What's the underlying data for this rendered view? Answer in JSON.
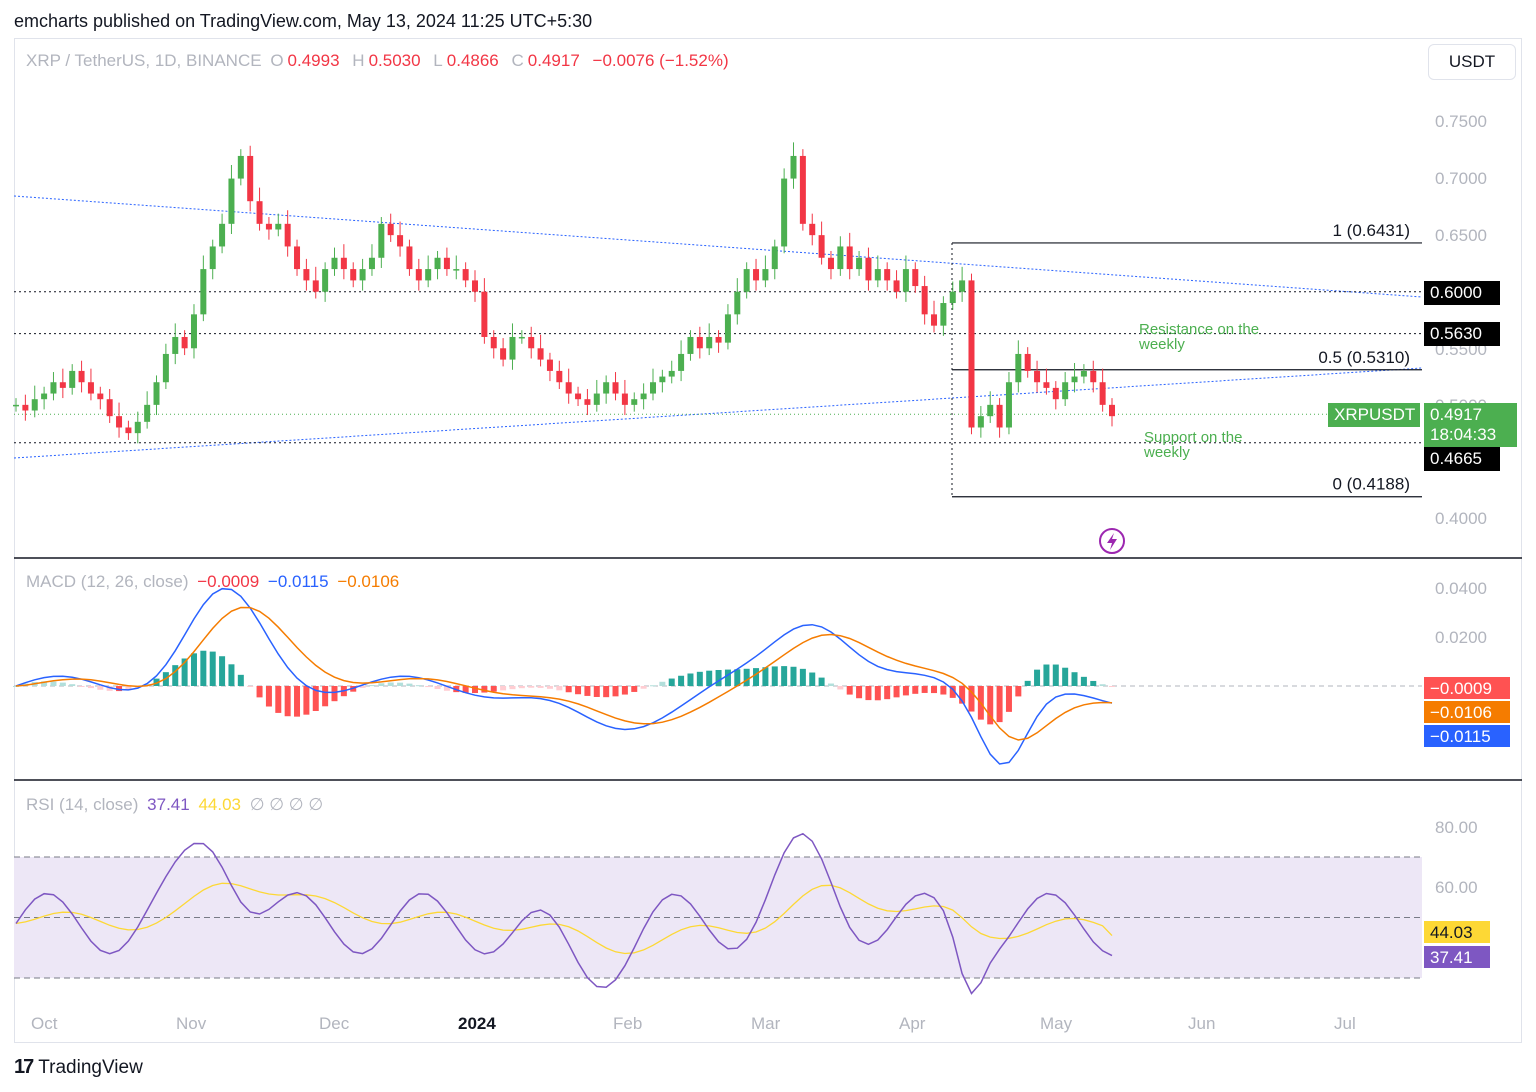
{
  "header": {
    "text": "emcharts published on TradingView.com, May 13, 2024 11:25 UTC+5:30"
  },
  "currency_button": "USDT",
  "price_legend": {
    "symbol": "XRP / TetherUS, 1D, BINANCE",
    "o_label": "O",
    "o_value": "0.4993",
    "h_label": "H",
    "h_value": "0.5030",
    "l_label": "L",
    "l_value": "0.4866",
    "c_label": "C",
    "c_value": "0.4917",
    "change": "−0.0076 (−1.52%)"
  },
  "macd_legend": {
    "title": "MACD (12, 26, close)",
    "hist": "−0.0009",
    "macd": "−0.0115",
    "signal": "−0.0106"
  },
  "rsi_legend": {
    "title": "RSI (14, close)",
    "rsi": "37.41",
    "ma": "44.03",
    "extras": "∅ ∅ ∅ ∅"
  },
  "price_axis": [
    "0.7500",
    "0.7000",
    "0.6500",
    "0.5500",
    "0.5000",
    "0.4000"
  ],
  "macd_axis": [
    "0.0400",
    "0.0200"
  ],
  "rsi_axis": [
    "80.00",
    "60.00"
  ],
  "x_axis": [
    "Oct",
    "Nov",
    "Dec",
    "2024",
    "Feb",
    "Mar",
    "Apr",
    "May",
    "Jun",
    "Jul"
  ],
  "price_tags": {
    "level_0600": "0.6000",
    "level_0563": "0.5630",
    "symbol_tag": "XRPUSDT",
    "last_price": "0.4917",
    "countdown": "18:04:33",
    "level_04665": "0.4665"
  },
  "macd_tags": {
    "hist": "−0.0009",
    "signal": "−0.0106",
    "macd": "−0.0115"
  },
  "rsi_tags": {
    "ma": "44.03",
    "rsi": "37.41"
  },
  "fib_labels": {
    "level_1": "1 (0.6431)",
    "level_05": "0.5 (0.5310)",
    "level_0": "0 (0.4188)"
  },
  "annotations": {
    "resistance": [
      "Resistance on the",
      "weekly"
    ],
    "support": [
      "Support on the",
      "weekly"
    ]
  },
  "colors": {
    "up": "#22ab94",
    "up_candle": "#4caf50",
    "down": "#f23645",
    "macd_line": "#2962ff",
    "signal_line": "#f57c00",
    "rsi_line": "#7e57c2",
    "rsi_ma": "#fdd835",
    "annotation": "#4caf50"
  },
  "footer": {
    "brand": "TradingView"
  },
  "chart_data": {
    "type": "candlestick",
    "symbol": "XRP / TetherUS",
    "timeframe": "1D",
    "exchange": "BINANCE",
    "ylim": [
      0.39,
      0.77
    ],
    "horizontal_levels": [
      0.6,
      0.563,
      0.4665
    ],
    "fib_levels": [
      {
        "label": "1",
        "value": 0.6431
      },
      {
        "label": "0.5",
        "value": 0.531
      },
      {
        "label": "0",
        "value": 0.4188
      }
    ],
    "last_close": 0.4917,
    "approx_closes": [
      0.5,
      0.495,
      0.505,
      0.51,
      0.52,
      0.515,
      0.53,
      0.52,
      0.51,
      0.505,
      0.49,
      0.48,
      0.475,
      0.485,
      0.5,
      0.52,
      0.545,
      0.56,
      0.55,
      0.58,
      0.62,
      0.64,
      0.66,
      0.7,
      0.72,
      0.68,
      0.66,
      0.655,
      0.66,
      0.64,
      0.62,
      0.61,
      0.6,
      0.62,
      0.63,
      0.62,
      0.61,
      0.62,
      0.63,
      0.66,
      0.65,
      0.64,
      0.62,
      0.61,
      0.62,
      0.63,
      0.62,
      0.62,
      0.61,
      0.6,
      0.56,
      0.55,
      0.54,
      0.56,
      0.56,
      0.55,
      0.54,
      0.53,
      0.52,
      0.51,
      0.505,
      0.5,
      0.51,
      0.52,
      0.51,
      0.5,
      0.505,
      0.51,
      0.52,
      0.525,
      0.53,
      0.545,
      0.56,
      0.55,
      0.56,
      0.555,
      0.58,
      0.6,
      0.62,
      0.61,
      0.62,
      0.64,
      0.7,
      0.72,
      0.66,
      0.65,
      0.63,
      0.62,
      0.64,
      0.62,
      0.63,
      0.61,
      0.62,
      0.61,
      0.6,
      0.62,
      0.605,
      0.58,
      0.57,
      0.59,
      0.6,
      0.61,
      0.48,
      0.49,
      0.5,
      0.48,
      0.52,
      0.545,
      0.53,
      0.52,
      0.515,
      0.505,
      0.52,
      0.525,
      0.53,
      0.52,
      0.5,
      0.49
    ]
  }
}
